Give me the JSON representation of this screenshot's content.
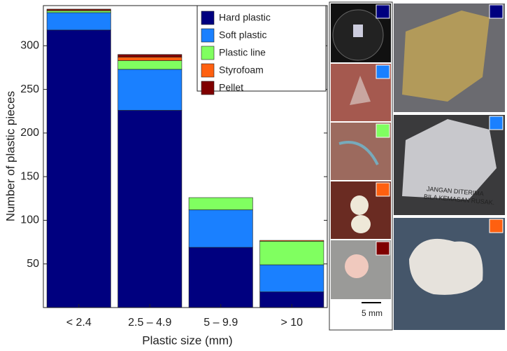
{
  "chart_data": {
    "type": "bar",
    "stacked": true,
    "xlabel": "Plastic size (mm)",
    "ylabel": "Number of plastic pieces",
    "categories": [
      "< 2.4",
      "2.5 – 4.9",
      "5 – 9.9",
      "> 10"
    ],
    "series": [
      {
        "name": "Hard plastic",
        "color": "#00007f",
        "values": [
          318,
          226,
          69,
          18
        ]
      },
      {
        "name": "Soft plastic",
        "color": "#1a80ff",
        "values": [
          20,
          47,
          43,
          31
        ]
      },
      {
        "name": "Plastic line",
        "color": "#80ff60",
        "values": [
          2,
          10,
          14,
          27
        ]
      },
      {
        "name": "Styrofoam",
        "color": "#ff6010",
        "values": [
          1,
          4,
          0,
          1
        ]
      },
      {
        "name": "Pellet",
        "color": "#7f0000",
        "values": [
          1,
          3,
          0,
          0
        ]
      }
    ],
    "ylim": [
      0,
      346
    ],
    "yticks": [
      50,
      100,
      150,
      200,
      250,
      300
    ],
    "legend": "upper right"
  },
  "scale_bar_label": "5 mm",
  "photo_text": [
    "JANGAN DITERIMA",
    "BILA KEMASAN RUSAK."
  ]
}
